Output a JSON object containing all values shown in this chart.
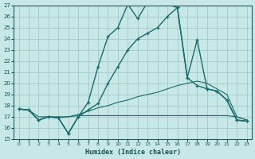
{
  "xlabel": "Humidex (Indice chaleur)",
  "bg_color": "#c8e8e8",
  "grid_color": "#a8cece",
  "line_color": "#1a6b6b",
  "xmin": 0,
  "xmax": 23,
  "ymin": 15,
  "ymax": 27,
  "line_main_x": [
    0,
    1,
    2,
    3,
    4,
    5,
    6,
    7,
    8,
    9,
    10,
    11,
    12,
    13,
    14,
    15,
    16,
    17,
    18,
    19,
    20,
    21,
    22,
    23
  ],
  "line_main_y": [
    17.7,
    17.6,
    16.7,
    17.0,
    16.9,
    15.5,
    17.0,
    18.3,
    21.5,
    24.2,
    25.0,
    27.1,
    25.8,
    27.3,
    27.3,
    27.1,
    26.8,
    20.5,
    23.9,
    19.5,
    19.3,
    18.5,
    16.7,
    16.6
  ],
  "line_curve2_x": [
    0,
    1,
    2,
    3,
    4,
    5,
    6,
    7,
    8,
    9,
    10,
    11,
    12,
    13,
    14,
    15,
    16,
    17,
    18,
    19,
    20,
    21,
    22,
    23
  ],
  "line_curve2_y": [
    17.7,
    17.6,
    16.7,
    17.0,
    16.9,
    15.5,
    17.0,
    17.6,
    18.2,
    20.0,
    21.5,
    23.0,
    24.0,
    24.5,
    25.0,
    26.0,
    26.8,
    20.5,
    19.8,
    19.5,
    19.3,
    18.5,
    16.7,
    16.6
  ],
  "line_grad_x": [
    0,
    1,
    2,
    3,
    4,
    5,
    6,
    7,
    8,
    9,
    10,
    11,
    12,
    13,
    14,
    15,
    16,
    17,
    18,
    19,
    20,
    21,
    22,
    23
  ],
  "line_grad_y": [
    17.7,
    17.6,
    16.7,
    17.0,
    16.9,
    17.0,
    17.2,
    17.5,
    17.8,
    18.0,
    18.3,
    18.5,
    18.8,
    19.0,
    19.2,
    19.5,
    19.8,
    20.0,
    20.2,
    20.0,
    19.5,
    19.0,
    17.0,
    16.7
  ],
  "line_flat_x": [
    0,
    1,
    2,
    3,
    4,
    5,
    6,
    7,
    8,
    9,
    10,
    11,
    12,
    13,
    14,
    15,
    16,
    17,
    18,
    19,
    20,
    21,
    22,
    23
  ],
  "line_flat_y": [
    17.7,
    17.6,
    17.0,
    17.0,
    17.0,
    17.0,
    17.1,
    17.1,
    17.1,
    17.1,
    17.1,
    17.1,
    17.1,
    17.1,
    17.1,
    17.1,
    17.1,
    17.1,
    17.1,
    17.1,
    17.1,
    17.1,
    17.0,
    16.7
  ]
}
